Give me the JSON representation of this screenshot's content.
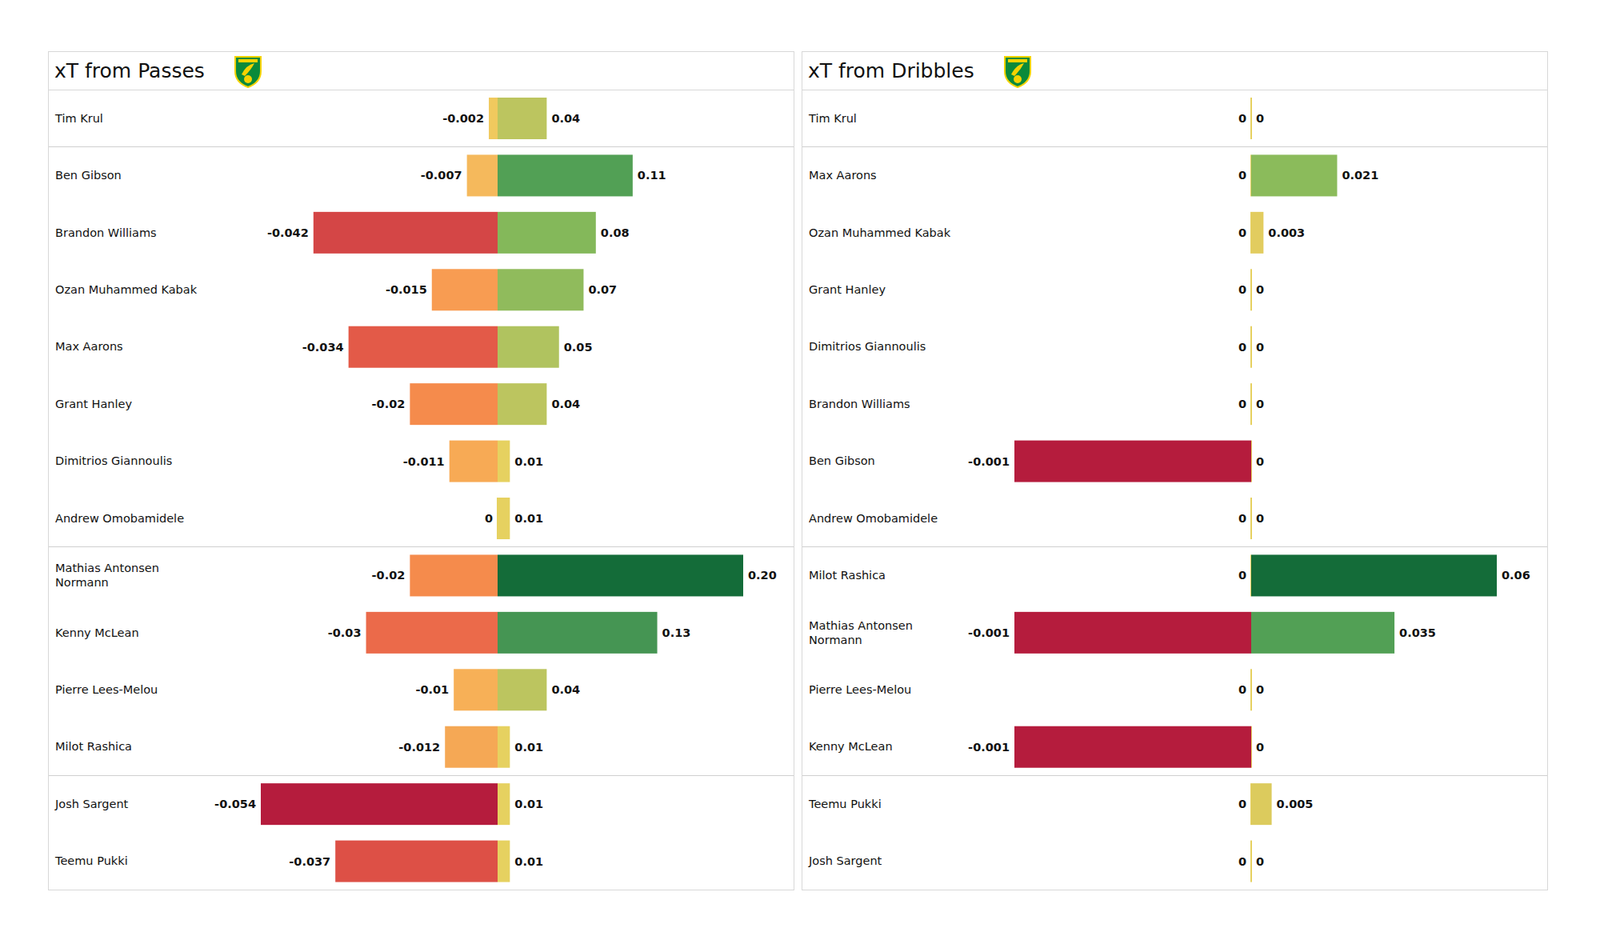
{
  "chart_data": [
    {
      "type": "bar",
      "orientation": "horizontal",
      "title": "xT from Passes",
      "data_labels": true,
      "tick_labels": "y",
      "categories": [
        "Tim Krul",
        "Ben Gibson",
        "Brandon Williams",
        "Ozan Muhammed Kabak",
        "Max Aarons",
        "Grant Hanley",
        "Dimitrios Giannoulis",
        "Andrew Omobamidele",
        "Mathias  Antonsen Normann",
        "Kenny McLean",
        "Pierre Lees-Melou",
        "Milot Rashica",
        "Josh Sargent",
        "Teemu Pukki"
      ],
      "series": [
        {
          "values": [
            -0.002,
            -0.007,
            -0.042,
            -0.015,
            -0.034,
            -0.02,
            -0.011,
            0,
            -0.02,
            -0.03,
            -0.01,
            -0.012,
            -0.054,
            -0.037
          ],
          "colors": [
            "#f0c95e",
            "#f5b95c",
            "#d44646",
            "#f89c52",
            "#e35a48",
            "#f58b4c",
            "#f7aa55",
            "#e6d160",
            "#f58b4c",
            "#eb6a4a",
            "#f7b057",
            "#f5a855",
            "#b51c3d",
            "#dd5046"
          ],
          "xlim": [
            -0.054,
            0
          ]
        },
        {
          "values": [
            0.04,
            0.11,
            0.08,
            0.07,
            0.05,
            0.04,
            0.01,
            0.01,
            0.2,
            0.13,
            0.04,
            0.01,
            0.01,
            0.01
          ],
          "value_labels": [
            "0.04",
            "0.11",
            "0.08",
            "0.07",
            "0.05",
            "0.04",
            "0.01",
            "0.01",
            "0.20",
            "0.13",
            "0.04",
            "0.01",
            "0.01",
            "0.01"
          ],
          "colors": [
            "#bcc55f",
            "#52a055",
            "#84b85a",
            "#90bb5c",
            "#b0c35f",
            "#bcc55f",
            "#e6d160",
            "#e6d160",
            "#146c39",
            "#459553",
            "#bcc55f",
            "#e6d160",
            "#e6d160",
            "#e6d160"
          ],
          "xlim": [
            0,
            0.2
          ]
        }
      ]
    },
    {
      "type": "bar",
      "orientation": "horizontal",
      "title": "xT from Dribbles",
      "data_labels": true,
      "tick_labels": "y",
      "categories": [
        "Tim Krul",
        "Max Aarons",
        "Ozan Muhammed Kabak",
        "Grant Hanley",
        "Dimitrios Giannoulis",
        "Brandon Williams",
        "Ben Gibson",
        "Andrew Omobamidele",
        "Milot Rashica",
        "Mathias  Antonsen Normann",
        "Pierre Lees-Melou",
        "Kenny McLean",
        "Teemu Pukki",
        "Josh Sargent"
      ],
      "series": [
        {
          "values": [
            0,
            0,
            0,
            0,
            0,
            0,
            -0.001,
            0,
            0,
            -0.001,
            0,
            -0.001,
            0,
            0
          ],
          "colors": [
            "#e6d160",
            "#e6d160",
            "#e6d160",
            "#e6d160",
            "#e6d160",
            "#e6d160",
            "#b51c3d",
            "#e6d160",
            "#e6d160",
            "#b51c3d",
            "#e6d160",
            "#b51c3d",
            "#e6d160",
            "#e6d160"
          ],
          "xlim": [
            -0.001,
            0
          ]
        },
        {
          "values": [
            0,
            0.021,
            0.003,
            0,
            0,
            0,
            0,
            0,
            0.06,
            0.035,
            0,
            0,
            0.005,
            0
          ],
          "colors": [
            "#e6d160",
            "#8bbb5b",
            "#e2cc5f",
            "#e6d160",
            "#e6d160",
            "#e6d160",
            "#e6d160",
            "#e6d160",
            "#146c39",
            "#52a055",
            "#e6d160",
            "#e6d160",
            "#dccb5d",
            "#e6d160"
          ],
          "xlim": [
            0,
            0.06
          ]
        }
      ]
    }
  ]
}
